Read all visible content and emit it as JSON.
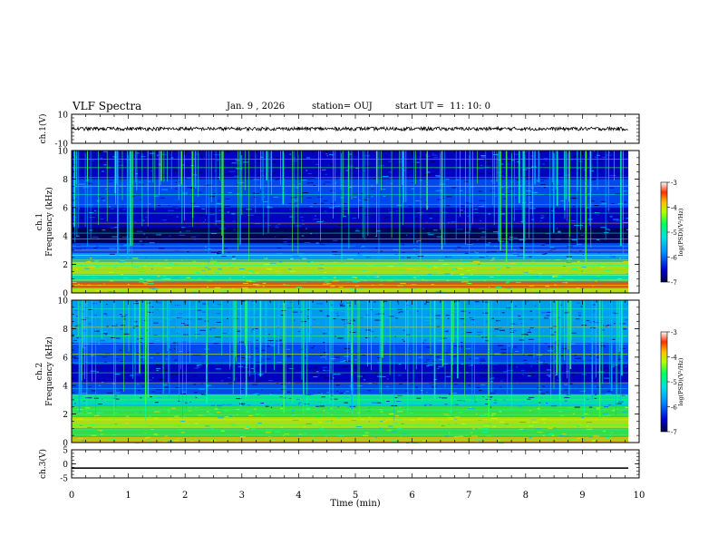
{
  "header": {
    "title": "VLF Spectra",
    "date": "Jan. 9 , 2026",
    "station": "station= OUJ",
    "start": "start UT =  11: 10: 0"
  },
  "chart_data": [
    {
      "type": "line",
      "name": "ch1-waveform",
      "ylabel": "ch.1(V)",
      "ylim": [
        -10,
        10
      ],
      "yticks": [
        "10",
        "-10"
      ],
      "xlim": [
        0,
        10
      ],
      "series": [
        {
          "name": "ch.1",
          "mean": 0,
          "amplitude": 1.2
        }
      ]
    },
    {
      "type": "heatmap",
      "name": "ch1-spectrogram",
      "ylabel": "ch.1\nFrequency (kHz)",
      "ylim": [
        0,
        10
      ],
      "yticks": [
        "0",
        "2",
        "4",
        "6",
        "8",
        "10"
      ],
      "xlim": [
        0,
        9.85
      ],
      "colorbar": {
        "label": "log(PSD)(V²/Hz)",
        "range": [
          -7,
          -3
        ],
        "ticks": [
          "-3",
          "-4",
          "-5",
          "-6",
          "-7"
        ]
      }
    },
    {
      "type": "heatmap",
      "name": "ch2-spectrogram",
      "ylabel": "ch.2\nFrequency (kHz)",
      "ylim": [
        0,
        10
      ],
      "yticks": [
        "0",
        "2",
        "4",
        "6",
        "8",
        "10"
      ],
      "xlim": [
        0,
        9.85
      ],
      "colorbar": {
        "label": "log(PSD)(V²/Hz)",
        "range": [
          -7,
          -3
        ],
        "ticks": [
          "-3",
          "-4",
          "-5",
          "-6",
          "-7"
        ]
      }
    },
    {
      "type": "line",
      "name": "ch3-waveform",
      "ylabel": "ch.3(V)",
      "ylim": [
        -5,
        5
      ],
      "yticks": [
        "5",
        "0",
        "-5"
      ],
      "xlim": [
        0,
        10
      ],
      "series": [
        {
          "name": "ch.3",
          "mean": -1.5,
          "amplitude": 0.25
        }
      ]
    }
  ],
  "xaxis": {
    "label": "Time (min)",
    "range": [
      0,
      10
    ],
    "ticks": [
      "0",
      "1",
      "2",
      "3",
      "4",
      "5",
      "6",
      "7",
      "8",
      "9",
      "10"
    ]
  },
  "colors": {
    "colormap": [
      "#00004a",
      "#0000c8",
      "#0050ff",
      "#00b4ff",
      "#00ffb4",
      "#3cff3c",
      "#c8ff00",
      "#ffd200",
      "#ff6400",
      "#d20000"
    ]
  }
}
